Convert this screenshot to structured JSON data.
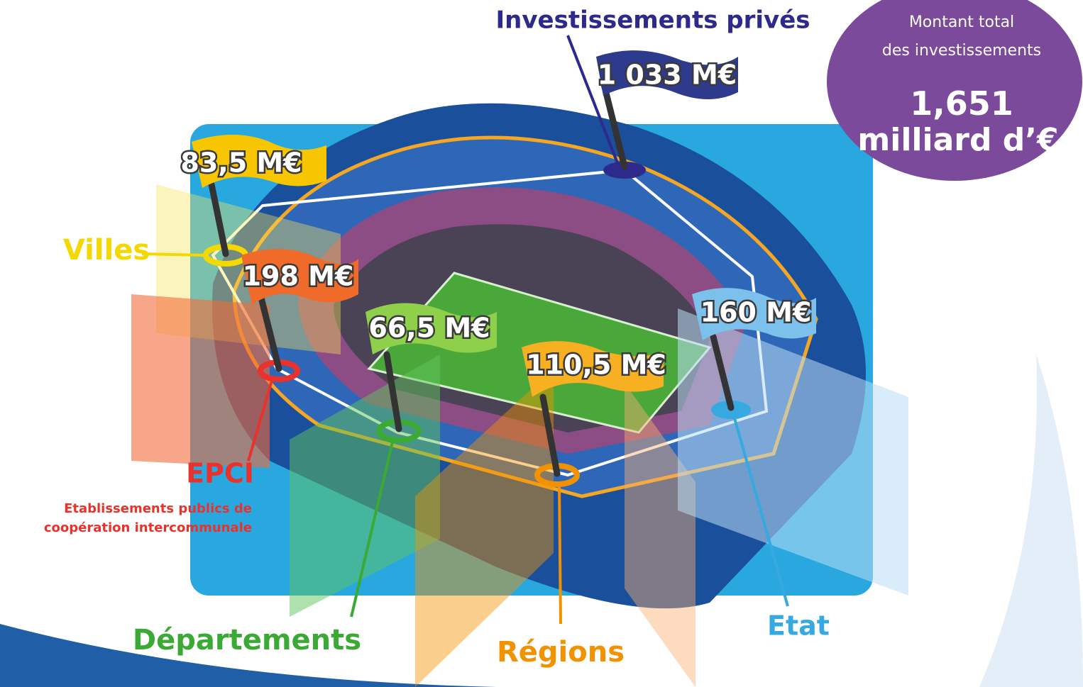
{
  "total": {
    "label_lines": [
      "Montant total",
      "des investissements"
    ],
    "amount_lines": [
      "1,651",
      "milliard d’€"
    ]
  },
  "contributors": [
    {
      "name": "Investissements privés",
      "amount": "1 033 M€"
    },
    {
      "name": "Villes",
      "amount": "83,5 M€"
    },
    {
      "name": "EPCI",
      "amount": "198 M€",
      "subtitle_lines": [
        "Etablissements publics de",
        "coopération intercommunale"
      ]
    },
    {
      "name": "Départements",
      "amount": "66,5 M€"
    },
    {
      "name": "Régions",
      "amount": "110,5 M€"
    },
    {
      "name": "Etat",
      "amount": "160 M€"
    }
  ]
}
